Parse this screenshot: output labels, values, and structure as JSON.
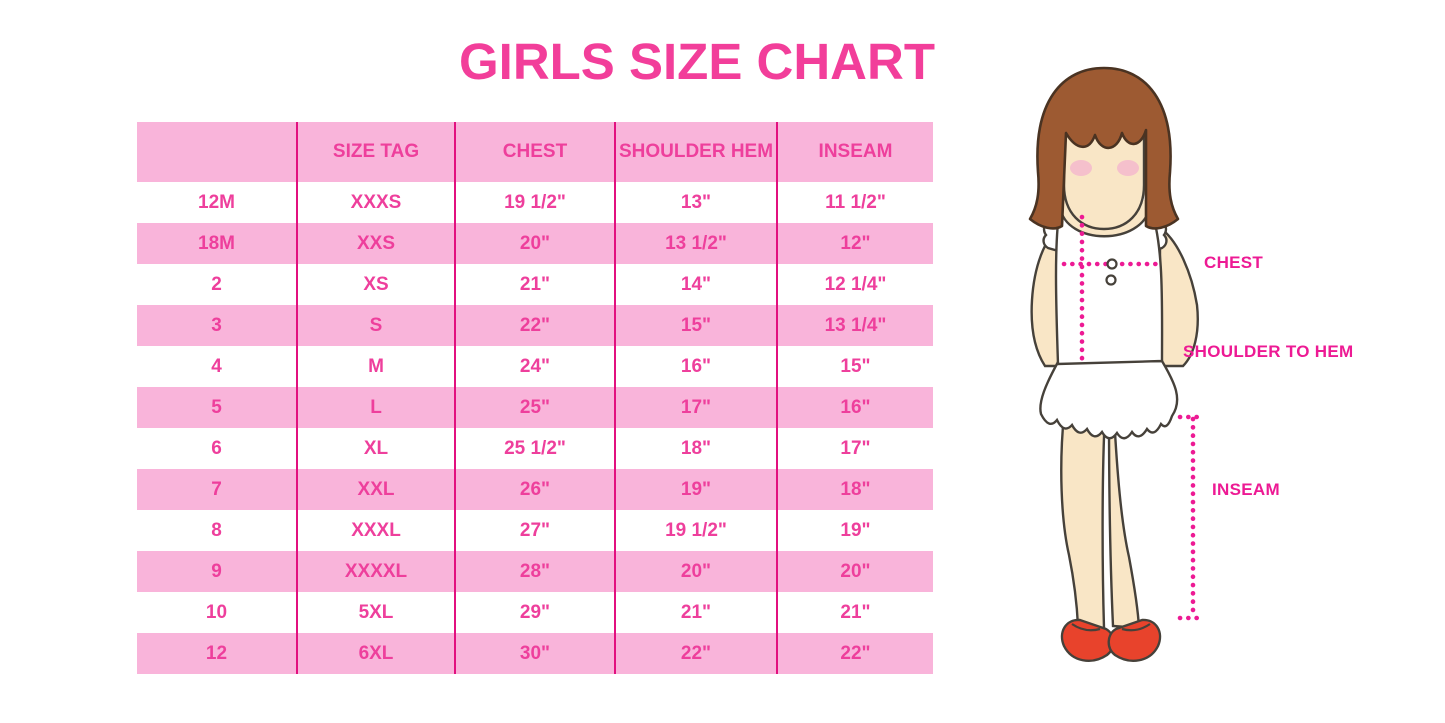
{
  "title": "GIRLS SIZE CHART",
  "chart_data": {
    "type": "table",
    "title": "GIRLS SIZE CHART",
    "columns": [
      "",
      "SIZE TAG",
      "CHEST",
      "SHOULDER HEM",
      "INSEAM"
    ],
    "rows": [
      [
        "12M",
        "XXXS",
        "19 1/2\"",
        "13\"",
        "11 1/2\""
      ],
      [
        "18M",
        "XXS",
        "20\"",
        "13 1/2\"",
        "12\""
      ],
      [
        "2",
        "XS",
        "21\"",
        "14\"",
        "12 1/4\""
      ],
      [
        "3",
        "S",
        "22\"",
        "15\"",
        "13 1/4\""
      ],
      [
        "4",
        "M",
        "24\"",
        "16\"",
        "15\""
      ],
      [
        "5",
        "L",
        "25\"",
        "17\"",
        "16\""
      ],
      [
        "6",
        "XL",
        "25 1/2\"",
        "18\"",
        "17\""
      ],
      [
        "7",
        "XXL",
        "26\"",
        "19\"",
        "18\""
      ],
      [
        "8",
        "XXXL",
        "27\"",
        "19 1/2\"",
        "19\""
      ],
      [
        "9",
        "XXXXL",
        "28\"",
        "20\"",
        "20\""
      ],
      [
        "10",
        "5XL",
        "29\"",
        "21\"",
        "21\""
      ],
      [
        "12",
        "6XL",
        "30\"",
        "22\"",
        "22\""
      ]
    ],
    "layout_hints": {
      "row_banding": "alternating pink and white",
      "grid": "vertical column separators only"
    }
  },
  "figure": {
    "labels": {
      "chest": "CHEST",
      "shoulder_to_hem": "SHOULDER TO HEM",
      "inseam": "INSEAM"
    }
  },
  "colors": {
    "title_pink": "#f23e9a",
    "cell_text_pink": "#ee3f9c",
    "row_band_pink": "#f9b4da",
    "column_border_magenta": "#e2107f",
    "label_pink": "#ed1a94",
    "outline_dark": "#46413a",
    "hair_brown": "#9d5a32",
    "hair_outline": "#4a3322",
    "skin_tone": "#f9e6c6",
    "blush_pink": "#f5c0cc",
    "shoe_red": "#e8432c"
  }
}
